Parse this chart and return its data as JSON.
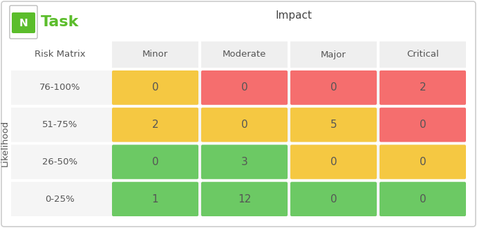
{
  "title": "Impact",
  "ylabel": "Likelihood",
  "col_labels": [
    "Minor",
    "Moderate",
    "Major",
    "Critical"
  ],
  "row_labels": [
    "76-100%",
    "51-75%",
    "26-50%",
    "0-25%"
  ],
  "header_label": "Risk Matrix",
  "values": [
    [
      0,
      0,
      0,
      2
    ],
    [
      2,
      0,
      5,
      0
    ],
    [
      0,
      3,
      0,
      0
    ],
    [
      1,
      12,
      0,
      0
    ]
  ],
  "colors": [
    [
      "#F5C842",
      "#F56E6E",
      "#F56E6E",
      "#F56E6E"
    ],
    [
      "#F5C842",
      "#F5C842",
      "#F5C842",
      "#F56E6E"
    ],
    [
      "#6CC964",
      "#6CC964",
      "#F5C842",
      "#F5C842"
    ],
    [
      "#6CC964",
      "#6CC964",
      "#6CC964",
      "#6CC964"
    ]
  ],
  "bg_color": "#FFFFFF",
  "header_bg": "#EFEFEF",
  "row_bg": "#F5F5F5",
  "border_color": "#CCCCCC",
  "text_color": "#555555",
  "cell_text_color": "#555555",
  "title_color": "#444444",
  "logo_green": "#5BBD2B",
  "task_text_color": "#5BBD2B",
  "figsize": [
    6.9,
    3.3
  ],
  "dpi": 100
}
